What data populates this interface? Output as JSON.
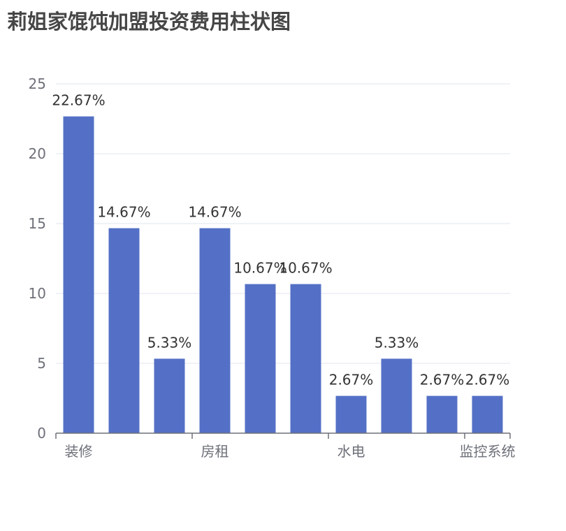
{
  "chart_data": {
    "type": "bar",
    "title": "莉姐家馄饨加盟投资费用柱状图",
    "categories": [
      "装修",
      "",
      "",
      "房租",
      "",
      "",
      "水电",
      "",
      "",
      "监控系统"
    ],
    "values": [
      22.67,
      14.67,
      5.33,
      14.67,
      10.67,
      10.67,
      2.67,
      5.33,
      2.67,
      2.67
    ],
    "data_labels": [
      "22.67%",
      "14.67%",
      "5.33%",
      "14.67%",
      "10.67%",
      "10.67%",
      "2.67%",
      "5.33%",
      "2.67%",
      "2.67%"
    ],
    "ylim": [
      0,
      25
    ],
    "yticks": [
      0,
      5,
      10,
      15,
      20,
      25
    ],
    "xlabel": "",
    "ylabel": "",
    "grid": true,
    "legend": "none",
    "colors": {
      "bar": "#5470c6",
      "grid": "#e0e6f1",
      "axis": "#6e7079"
    }
  }
}
